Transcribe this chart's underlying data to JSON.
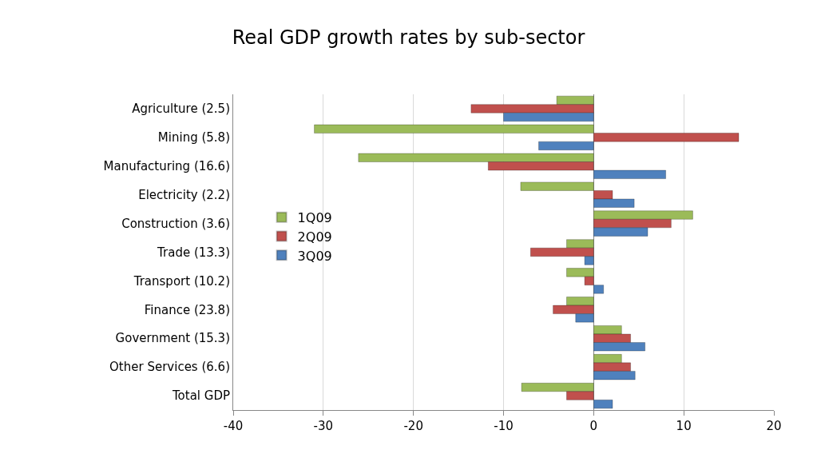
{
  "chart_data": {
    "type": "bar",
    "orientation": "horizontal",
    "title": "Real GDP growth rates by sub-sector",
    "categories": [
      "Agriculture (2.5)",
      "Mining (5.8)",
      "Manufacturing (16.6)",
      "Electricity (2.2)",
      "Construction (3.6)",
      "Trade (13.3)",
      "Transport (10.2)",
      "Finance (23.8)",
      "Government (15.3)",
      "Other Services (6.6)",
      "Total GDP"
    ],
    "series": [
      {
        "name": "1Q09",
        "color": "#9bbb59",
        "values": [
          -4.1,
          -31.0,
          -26.1,
          -8.1,
          11.0,
          -3.0,
          -3.0,
          -3.0,
          3.1,
          3.1,
          -8.0
        ]
      },
      {
        "name": "2Q09",
        "color": "#c0504d",
        "values": [
          -13.6,
          16.1,
          -11.7,
          2.1,
          8.6,
          -7.0,
          -1.0,
          -4.5,
          4.1,
          4.1,
          -3.0
        ]
      },
      {
        "name": "3Q09",
        "color": "#4f81bd",
        "values": [
          -10.0,
          -6.1,
          8.0,
          4.5,
          6.0,
          -1.0,
          1.1,
          -2.0,
          5.7,
          4.6,
          2.1
        ]
      }
    ],
    "xlim": [
      -40,
      20
    ],
    "xticks": [
      -40,
      -30,
      -20,
      -10,
      0,
      10,
      20
    ],
    "grid": "x",
    "legend": "left"
  }
}
